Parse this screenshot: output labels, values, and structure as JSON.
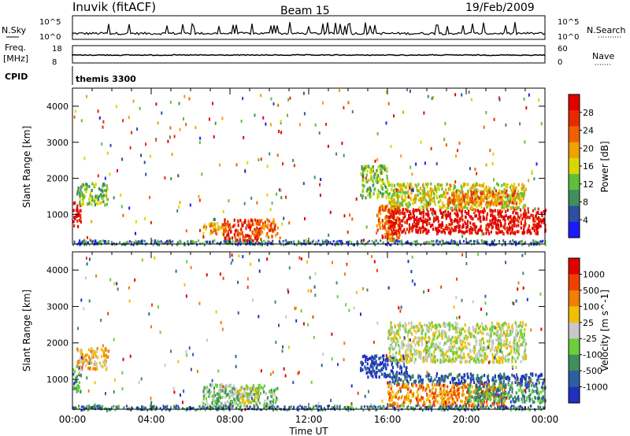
{
  "header": {
    "station": "Inuvik (fitACF)",
    "beam": "Beam 15",
    "date": "19/Feb/2009"
  },
  "summary_panels": {
    "nsky_label": "N.Sky",
    "nsky_ticks": [
      "10^5",
      "10^0"
    ],
    "nsearch_label": "N.Search",
    "nsearch_ticks": [
      "10^5",
      "10^0"
    ],
    "freq_label": "Freq.",
    "freq_unit": "[MHz]",
    "freq_ticks": [
      "18",
      "8"
    ],
    "nave_label": "Nave",
    "nave_ticks": [
      "60",
      "0"
    ],
    "cpid_label": "CPID",
    "cpid_value": "themis 3300"
  },
  "colors": {
    "power_scale": [
      "#1a1aff",
      "#2d4fa0",
      "#3f8f5c",
      "#5fbf3a",
      "#d8d800",
      "#f0a000",
      "#f06000",
      "#e62a00",
      "#e00000"
    ],
    "velocity_scale": [
      "#2030c0",
      "#2d5fa0",
      "#3f8f5c",
      "#6ccf3a",
      "#c8c8c8",
      "#f0c000",
      "#f08000",
      "#f04000",
      "#e00000"
    ],
    "ground_scatter": "#bdbdbd"
  },
  "chart_data": [
    {
      "type": "heatmap",
      "title": "Power",
      "ylabel": "Slant Range [km]",
      "xlabel": "Time UT",
      "colorbar_label": "Power [dB]",
      "colorbar_ticks": [
        "28",
        "24",
        "20",
        "16",
        "12",
        "8",
        "4"
      ],
      "xlim_hours": [
        0,
        24
      ],
      "ylim_km": [
        180,
        4500
      ],
      "x_ticks": [
        "00:00",
        "04:00",
        "08:00",
        "12:00",
        "16:00",
        "20:00",
        "00:00"
      ],
      "y_ticks": [
        "1000",
        "2000",
        "3000",
        "4000"
      ],
      "regions": [
        {
          "t0": 0.0,
          "t1": 0.4,
          "r0": 700,
          "r1": 1400,
          "level": 8
        },
        {
          "t0": 0.2,
          "t1": 1.8,
          "r0": 1300,
          "r1": 1900,
          "level": 3
        },
        {
          "t0": 6.6,
          "t1": 8.0,
          "r0": 500,
          "r1": 800,
          "level": 5
        },
        {
          "t0": 7.6,
          "t1": 9.6,
          "r0": 300,
          "r1": 900,
          "level": 7
        },
        {
          "t0": 9.2,
          "t1": 10.4,
          "r0": 400,
          "r1": 900,
          "level": 6
        },
        {
          "t0": 14.6,
          "t1": 16.0,
          "r0": 1500,
          "r1": 2400,
          "level": 3
        },
        {
          "t0": 15.4,
          "t1": 16.6,
          "r0": 300,
          "r1": 1300,
          "level": 6
        },
        {
          "t0": 16.0,
          "t1": 24.0,
          "r0": 500,
          "r1": 1200,
          "level": 8
        },
        {
          "t0": 16.0,
          "t1": 23.0,
          "r0": 1200,
          "r1": 1900,
          "level": 4
        },
        {
          "t0": 19.0,
          "t1": 22.6,
          "r0": 1300,
          "r1": 1700,
          "level": 6
        }
      ]
    },
    {
      "type": "heatmap",
      "title": "Velocity",
      "ylabel": "Slant Range [km]",
      "xlabel": "Time UT",
      "colorbar_label": "Velocity [m s^-1]",
      "colorbar_ticks": [
        "1000",
        "500",
        "100",
        "25",
        "-25",
        "-100",
        "-500",
        "-1000"
      ],
      "xlim_hours": [
        0,
        24
      ],
      "ylim_km": [
        180,
        4500
      ],
      "x_ticks": [
        "00:00",
        "04:00",
        "08:00",
        "12:00",
        "16:00",
        "20:00",
        "00:00"
      ],
      "y_ticks": [
        "1000",
        "2000",
        "3000",
        "4000"
      ],
      "regions": [
        {
          "t0": 0.0,
          "t1": 0.4,
          "r0": 700,
          "r1": 1400,
          "level": 2
        },
        {
          "t0": 0.2,
          "t1": 1.8,
          "r0": 1300,
          "r1": 1900,
          "level": 5
        },
        {
          "t0": 6.6,
          "t1": 10.4,
          "r0": 300,
          "r1": 900,
          "level": 3
        },
        {
          "t0": 8.4,
          "t1": 9.4,
          "r0": 400,
          "r1": 800,
          "level": 4
        },
        {
          "t0": 14.6,
          "t1": 17.0,
          "r0": 1100,
          "r1": 1700,
          "level": 0
        },
        {
          "t0": 16.0,
          "t1": 24.0,
          "r0": 900,
          "r1": 1200,
          "level": 1
        },
        {
          "t0": 16.0,
          "t1": 22.0,
          "r0": 300,
          "r1": 900,
          "level": 6
        },
        {
          "t0": 16.0,
          "t1": 23.0,
          "r0": 1500,
          "r1": 2600,
          "level": 4
        },
        {
          "t0": 20.0,
          "t1": 24.0,
          "r0": 400,
          "r1": 900,
          "level": 2
        }
      ]
    }
  ]
}
